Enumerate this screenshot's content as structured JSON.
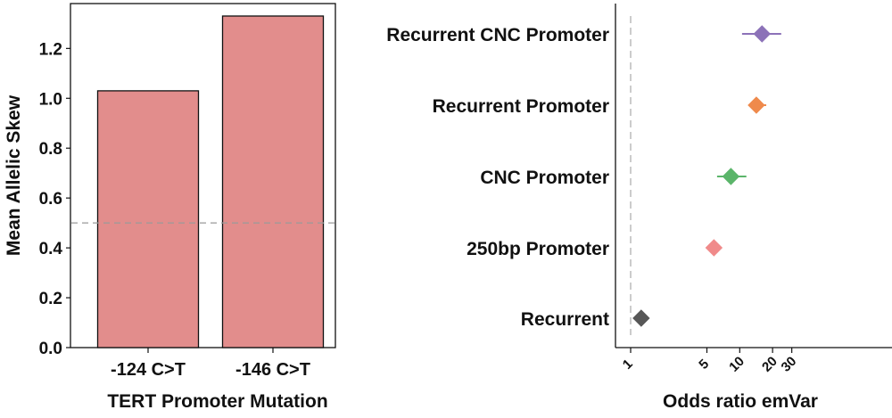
{
  "chart_data": [
    {
      "type": "bar",
      "xlabel": "TERT Promoter Mutation",
      "ylabel": "Mean Allelic Skew",
      "categories": [
        "-124 C>T",
        "-146 C>T"
      ],
      "values": [
        1.03,
        1.33
      ],
      "ylim": [
        0,
        1.38
      ],
      "yticks": [
        "0.0",
        "0.2",
        "0.4",
        "0.6",
        "0.8",
        "1.0",
        "1.2"
      ],
      "reference_line": 0.5,
      "bar_color": "#e28d8c",
      "grid": false
    },
    {
      "type": "scatter",
      "xlabel": "Odds ratio emVar",
      "x_scale": "log",
      "xticks": [
        "1",
        "5",
        "10",
        "20",
        "30"
      ],
      "reference_line": 1,
      "categories": [
        "Recurrent CNC Promoter",
        "Recurrent Promoter",
        "CNC Promoter",
        "250bp Promoter",
        "Recurrent"
      ],
      "points": [
        {
          "label": "Recurrent CNC Promoter",
          "value": 16,
          "ci": [
            10.5,
            24
          ],
          "color": "#8c72b8"
        },
        {
          "label": "Recurrent Promoter",
          "value": 14.2,
          "ci": [
            12,
            17.5
          ],
          "color": "#ef8a4c"
        },
        {
          "label": "CNC Promoter",
          "value": 8.3,
          "ci": [
            6.2,
            11.5
          ],
          "color": "#5bb56a"
        },
        {
          "label": "250bp Promoter",
          "value": 5.8,
          "ci": [
            5.3,
            6.3
          ],
          "color": "#f08a8a"
        },
        {
          "label": "Recurrent",
          "value": 1.25,
          "ci": [
            1.15,
            1.38
          ],
          "color": "#575757"
        }
      ],
      "grid": false
    }
  ]
}
